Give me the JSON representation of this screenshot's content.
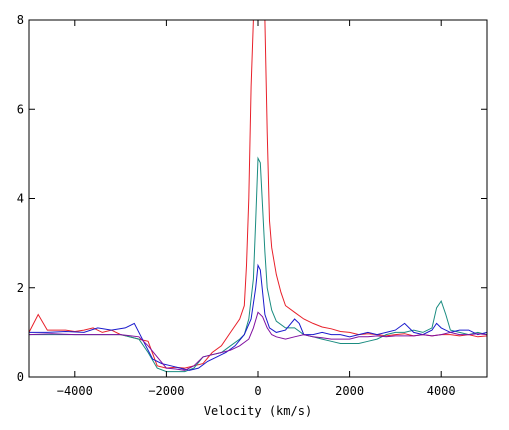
{
  "chart_data": {
    "type": "line",
    "title": "",
    "xlabel": "Velocity (km/s)",
    "ylabel": "",
    "xlim": [
      -5000,
      5000
    ],
    "ylim": [
      0,
      8
    ],
    "x_ticks": [
      -4000,
      -2000,
      0,
      2000,
      4000
    ],
    "x_tick_labels": [
      "−4000",
      "−2000",
      "0",
      "2000",
      "4000"
    ],
    "y_ticks": [
      0,
      2,
      4,
      6,
      8
    ],
    "y_tick_labels": [
      "0",
      "2",
      "4",
      "6",
      "8"
    ],
    "grid": false,
    "legend": "none",
    "series": [
      {
        "color": "#e8202a",
        "x": [
          -5000,
          -4800,
          -4600,
          -4400,
          -4200,
          -4000,
          -3800,
          -3600,
          -3400,
          -3200,
          -3000,
          -2800,
          -2600,
          -2400,
          -2200,
          -2000,
          -1800,
          -1600,
          -1400,
          -1200,
          -1000,
          -800,
          -600,
          -400,
          -300,
          -250,
          -200,
          -150,
          -100,
          -50,
          0,
          50,
          100,
          150,
          200,
          250,
          300,
          400,
          500,
          600,
          800,
          1000,
          1200,
          1400,
          1600,
          1800,
          2000,
          2200,
          2400,
          2600,
          2800,
          3000,
          3200,
          3400,
          3600,
          3800,
          4000,
          4200,
          4400,
          4600,
          4800,
          5000
        ],
        "values": [
          1.0,
          1.4,
          1.05,
          1.05,
          1.05,
          1.02,
          1.05,
          1.1,
          1.0,
          1.05,
          0.95,
          0.9,
          0.85,
          0.8,
          0.25,
          0.2,
          0.22,
          0.2,
          0.25,
          0.3,
          0.55,
          0.7,
          1.0,
          1.3,
          1.6,
          2.5,
          4.0,
          6.5,
          8.0,
          8.0,
          8.0,
          8.0,
          8.0,
          8.0,
          5.5,
          3.5,
          2.9,
          2.3,
          1.9,
          1.6,
          1.45,
          1.3,
          1.2,
          1.12,
          1.08,
          1.02,
          1.0,
          0.95,
          0.97,
          0.95,
          0.92,
          0.95,
          0.97,
          0.92,
          0.95,
          0.92,
          0.95,
          0.95,
          0.92,
          0.95,
          0.9,
          0.92
        ]
      },
      {
        "color": "#1a8c80",
        "x": [
          -5000,
          -4500,
          -4000,
          -3500,
          -3000,
          -2600,
          -2400,
          -2200,
          -2000,
          -1800,
          -1600,
          -1400,
          -1200,
          -1000,
          -800,
          -600,
          -400,
          -300,
          -200,
          -100,
          -50,
          0,
          50,
          100,
          150,
          200,
          300,
          400,
          600,
          800,
          1000,
          1200,
          1400,
          1600,
          1800,
          2000,
          2200,
          2400,
          2600,
          2800,
          3000,
          3200,
          3400,
          3600,
          3800,
          3900,
          4000,
          4100,
          4200,
          4400,
          4600,
          4800,
          5000
        ],
        "values": [
          0.95,
          0.95,
          0.95,
          0.95,
          0.95,
          0.85,
          0.55,
          0.2,
          0.12,
          0.12,
          0.12,
          0.2,
          0.45,
          0.5,
          0.55,
          0.7,
          0.85,
          0.95,
          1.3,
          2.2,
          3.5,
          4.9,
          4.8,
          3.8,
          2.8,
          2.0,
          1.5,
          1.25,
          1.1,
          1.1,
          0.95,
          0.9,
          0.85,
          0.8,
          0.75,
          0.75,
          0.75,
          0.8,
          0.85,
          0.95,
          1.0,
          1.0,
          1.05,
          1.0,
          1.1,
          1.55,
          1.7,
          1.4,
          1.05,
          1.0,
          0.95,
          1.0,
          0.95
        ]
      },
      {
        "color": "#1a1acc",
        "x": [
          -5000,
          -4600,
          -4200,
          -3800,
          -3500,
          -3200,
          -2900,
          -2700,
          -2500,
          -2300,
          -2100,
          -1900,
          -1700,
          -1500,
          -1300,
          -1100,
          -900,
          -700,
          -500,
          -300,
          -150,
          -50,
          0,
          50,
          100,
          150,
          250,
          400,
          600,
          800,
          900,
          1000,
          1200,
          1400,
          1600,
          1800,
          2000,
          2200,
          2400,
          2600,
          2800,
          3000,
          3200,
          3400,
          3600,
          3800,
          3900,
          4000,
          4200,
          4400,
          4600,
          4800,
          5000
        ],
        "values": [
          1.0,
          1.0,
          1.02,
          1.0,
          1.1,
          1.05,
          1.1,
          1.2,
          0.8,
          0.4,
          0.3,
          0.25,
          0.2,
          0.15,
          0.2,
          0.35,
          0.45,
          0.55,
          0.7,
          0.95,
          1.3,
          2.0,
          2.5,
          2.4,
          1.9,
          1.4,
          1.1,
          1.0,
          1.05,
          1.3,
          1.2,
          0.95,
          0.95,
          1.0,
          0.95,
          0.95,
          0.9,
          0.95,
          1.0,
          0.95,
          1.0,
          1.05,
          1.2,
          1.0,
          0.95,
          1.05,
          1.2,
          1.1,
          1.0,
          1.05,
          1.05,
          0.95,
          1.0
        ]
      },
      {
        "color": "#8010a0",
        "x": [
          -5000,
          -4500,
          -4000,
          -3500,
          -3000,
          -2600,
          -2400,
          -2200,
          -2000,
          -1800,
          -1600,
          -1400,
          -1200,
          -1000,
          -800,
          -600,
          -400,
          -200,
          -100,
          0,
          100,
          200,
          300,
          400,
          600,
          800,
          1000,
          1200,
          1400,
          1600,
          1800,
          2000,
          2200,
          2400,
          2600,
          2800,
          3000,
          3200,
          3400,
          3600,
          3800,
          4000,
          4200,
          4400,
          4600,
          4800,
          5000
        ],
        "values": [
          0.95,
          0.97,
          0.95,
          0.95,
          0.95,
          0.9,
          0.7,
          0.45,
          0.2,
          0.18,
          0.15,
          0.25,
          0.45,
          0.5,
          0.55,
          0.6,
          0.7,
          0.85,
          1.1,
          1.45,
          1.35,
          1.1,
          0.95,
          0.9,
          0.85,
          0.9,
          0.95,
          0.9,
          0.88,
          0.85,
          0.85,
          0.85,
          0.9,
          0.9,
          0.92,
          0.9,
          0.92,
          0.92,
          0.92,
          0.95,
          0.92,
          0.95,
          1.0,
          0.95,
          0.95,
          0.97,
          0.95
        ]
      }
    ]
  }
}
